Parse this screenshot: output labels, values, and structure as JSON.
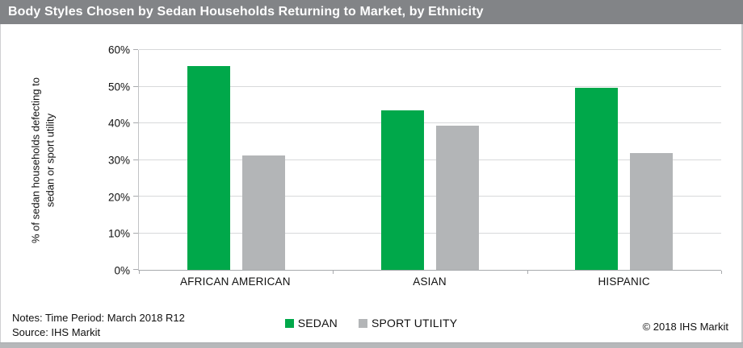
{
  "header": {
    "title": "Body Styles Chosen by Sedan Households Returning to Market, by Ethnicity"
  },
  "chart_data": {
    "type": "bar",
    "title": "Body Styles Chosen by Sedan Households Returning to Market, by Ethnicity",
    "categories": [
      "AFRICAN AMERICAN",
      "ASIAN",
      "HISPANIC"
    ],
    "series": [
      {
        "name": "SEDAN",
        "color": "#00a84a",
        "values": [
          55.7,
          43.5,
          49.6
        ]
      },
      {
        "name": "SPORT UTILITY",
        "color": "#b3b5b7",
        "values": [
          31.2,
          39.4,
          31.8
        ]
      }
    ],
    "xlabel": "",
    "ylabel": "% of sedan households defecting to sedan or sport utility",
    "ylabel_line1": "% of sedan households defecting to",
    "ylabel_line2": "sedan or sport utility",
    "ylim": [
      0,
      60
    ],
    "ytick_labels": [
      "0%",
      "10%",
      "20%",
      "30%",
      "40%",
      "50%",
      "60%"
    ],
    "grid": true,
    "legend_position": "bottom-center"
  },
  "footer": {
    "notes_line1": "Notes: Time Period: March 2018 R12",
    "notes_line2": "Source: IHS Markit",
    "copyright": "© 2018 IHS Markit"
  },
  "colors": {
    "header_bg": "#828487",
    "sedan_green": "#00a84a",
    "sport_utility_gray": "#b3b5b7",
    "gridline": "#d8d9da",
    "bottom_strip": "#b6b8ba"
  }
}
